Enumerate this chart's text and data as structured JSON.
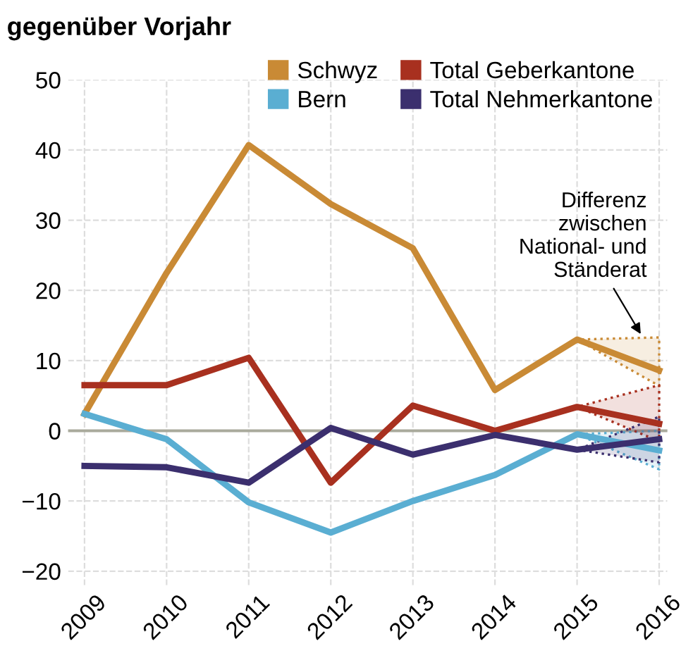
{
  "chart_data": {
    "type": "line",
    "title": "gegenüber Vorjahr",
    "categories": [
      "2009",
      "2010",
      "2011",
      "2012",
      "2013",
      "2014",
      "2015",
      "2016"
    ],
    "series": [
      {
        "name": "Schwyz",
        "color": "#c98a35",
        "values": [
          2.4,
          22.5,
          40.7,
          32.3,
          26,
          5.8,
          13,
          8.6
        ],
        "lower": [
          null,
          null,
          null,
          null,
          null,
          null,
          13,
          6.4
        ],
        "upper": [
          null,
          null,
          null,
          null,
          null,
          null,
          13,
          13.3
        ]
      },
      {
        "name": "Bern",
        "color": "#5aaed2",
        "values": [
          2.4,
          -1.2,
          -10.2,
          -14.5,
          -10,
          -6.3,
          -0.5,
          -2.8
        ],
        "lower": [
          null,
          null,
          null,
          null,
          null,
          null,
          -0.5,
          -5.5
        ],
        "upper": [
          null,
          null,
          null,
          null,
          null,
          null,
          -0.5,
          0
        ]
      },
      {
        "name": "Total Geberkantone",
        "color": "#a8301f",
        "values": [
          6.5,
          6.5,
          10.4,
          -7.4,
          3.6,
          0,
          3.4,
          1
        ],
        "lower": [
          null,
          null,
          null,
          null,
          null,
          null,
          3.4,
          -1.5
        ],
        "upper": [
          null,
          null,
          null,
          null,
          null,
          null,
          3.4,
          6.5
        ]
      },
      {
        "name": "Total Nehmerkantone",
        "color": "#3b2f6e",
        "values": [
          -5,
          -5.2,
          -7.4,
          0.4,
          -3.4,
          -0.6,
          -2.7,
          -1.2
        ],
        "lower": [
          null,
          null,
          null,
          null,
          null,
          null,
          -2.7,
          -4.5
        ],
        "upper": [
          null,
          null,
          null,
          null,
          null,
          null,
          -2.7,
          2
        ]
      }
    ],
    "ylim": [
      -22,
      50
    ],
    "yticks": [
      -20,
      -10,
      0,
      10,
      20,
      30,
      40,
      50
    ],
    "ref_lines": [
      {
        "axis": "y",
        "value": 0,
        "color": "#a9aa9c"
      }
    ],
    "annotations": [
      {
        "text": "Differenz\nzwischen\nNational- und\nStänderat",
        "x": "2016",
        "y": 13.3
      }
    ],
    "grid": true,
    "legend": "top right",
    "marker": "none",
    "line_style": "solid"
  }
}
